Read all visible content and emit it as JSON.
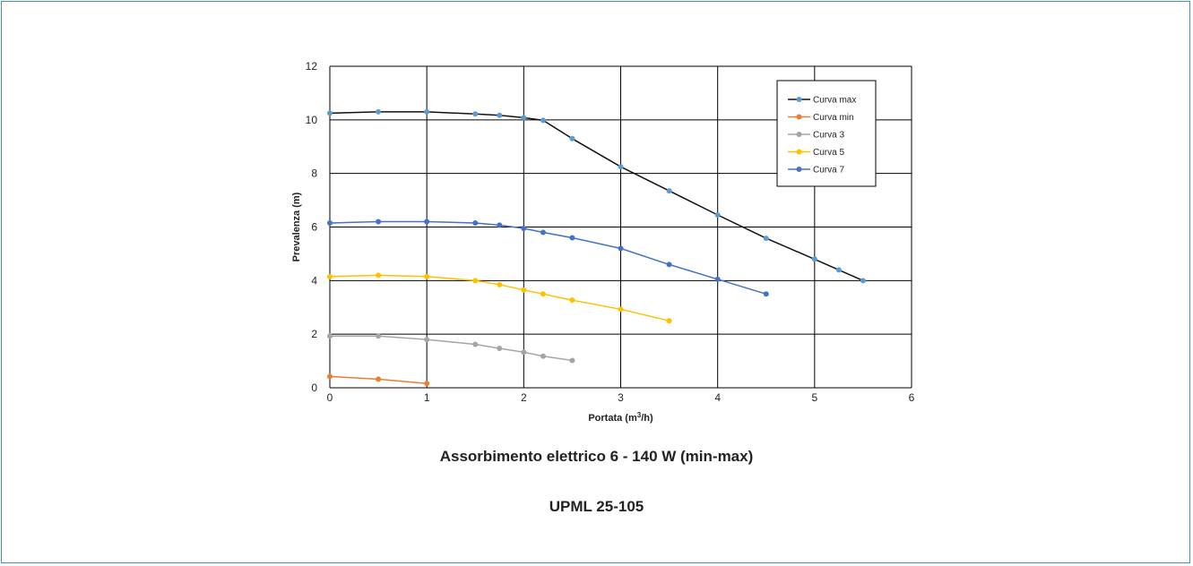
{
  "chart_data": {
    "type": "line",
    "xlabel": "Portata (m³/h)",
    "ylabel": "Prevalenza (m)",
    "xlim": [
      0,
      6
    ],
    "ylim": [
      0,
      12
    ],
    "xticks": [
      "0",
      "1",
      "2",
      "3",
      "4",
      "5",
      "6"
    ],
    "yticks": [
      "0",
      "2",
      "4",
      "6",
      "8",
      "10",
      "12"
    ],
    "grid": true,
    "legend_position": "top-right",
    "series": [
      {
        "name": "Curva max",
        "line_color": "#111111",
        "marker_color": "#5b9bd5",
        "points": [
          [
            0,
            10.25
          ],
          [
            0.5,
            10.3
          ],
          [
            1,
            10.3
          ],
          [
            1.5,
            10.22
          ],
          [
            1.75,
            10.17
          ],
          [
            2,
            10.08
          ],
          [
            2.2,
            9.98
          ],
          [
            2.5,
            9.3
          ],
          [
            3,
            8.25
          ],
          [
            3.5,
            7.35
          ],
          [
            4,
            6.45
          ],
          [
            4.5,
            5.58
          ],
          [
            5,
            4.8
          ],
          [
            5.25,
            4.4
          ],
          [
            5.5,
            4.0
          ]
        ]
      },
      {
        "name": "Curva min",
        "line_color": "#ed7d31",
        "marker_color": "#ed7d31",
        "points": [
          [
            0,
            0.42
          ],
          [
            0.5,
            0.32
          ],
          [
            1,
            0.16
          ]
        ]
      },
      {
        "name": "Curva 3",
        "line_color": "#a5a5a5",
        "marker_color": "#a5a5a5",
        "points": [
          [
            0,
            1.93
          ],
          [
            0.5,
            1.93
          ],
          [
            1,
            1.8
          ],
          [
            1.5,
            1.62
          ],
          [
            1.75,
            1.47
          ],
          [
            2,
            1.33
          ],
          [
            2.2,
            1.18
          ],
          [
            2.5,
            1.02
          ]
        ]
      },
      {
        "name": "Curva 5",
        "line_color": "#ffc000",
        "marker_color": "#ffc000",
        "points": [
          [
            0,
            4.15
          ],
          [
            0.5,
            4.2
          ],
          [
            1,
            4.15
          ],
          [
            1.5,
            4.0
          ],
          [
            1.75,
            3.85
          ],
          [
            2,
            3.65
          ],
          [
            2.2,
            3.5
          ],
          [
            2.5,
            3.27
          ],
          [
            3,
            2.93
          ],
          [
            3.5,
            2.5
          ]
        ]
      },
      {
        "name": "Curva 7",
        "line_color": "#4472c4",
        "marker_color": "#4472c4",
        "points": [
          [
            0,
            6.15
          ],
          [
            0.5,
            6.2
          ],
          [
            1,
            6.2
          ],
          [
            1.5,
            6.15
          ],
          [
            1.75,
            6.07
          ],
          [
            2,
            5.95
          ],
          [
            2.2,
            5.8
          ],
          [
            2.5,
            5.6
          ],
          [
            3,
            5.2
          ],
          [
            3.5,
            4.6
          ],
          [
            4,
            4.05
          ],
          [
            4.5,
            3.5
          ]
        ]
      }
    ]
  },
  "captions": {
    "power": "Assorbimento elettrico 6 - 140 W (min-max)",
    "model": "UPML 25-105"
  }
}
